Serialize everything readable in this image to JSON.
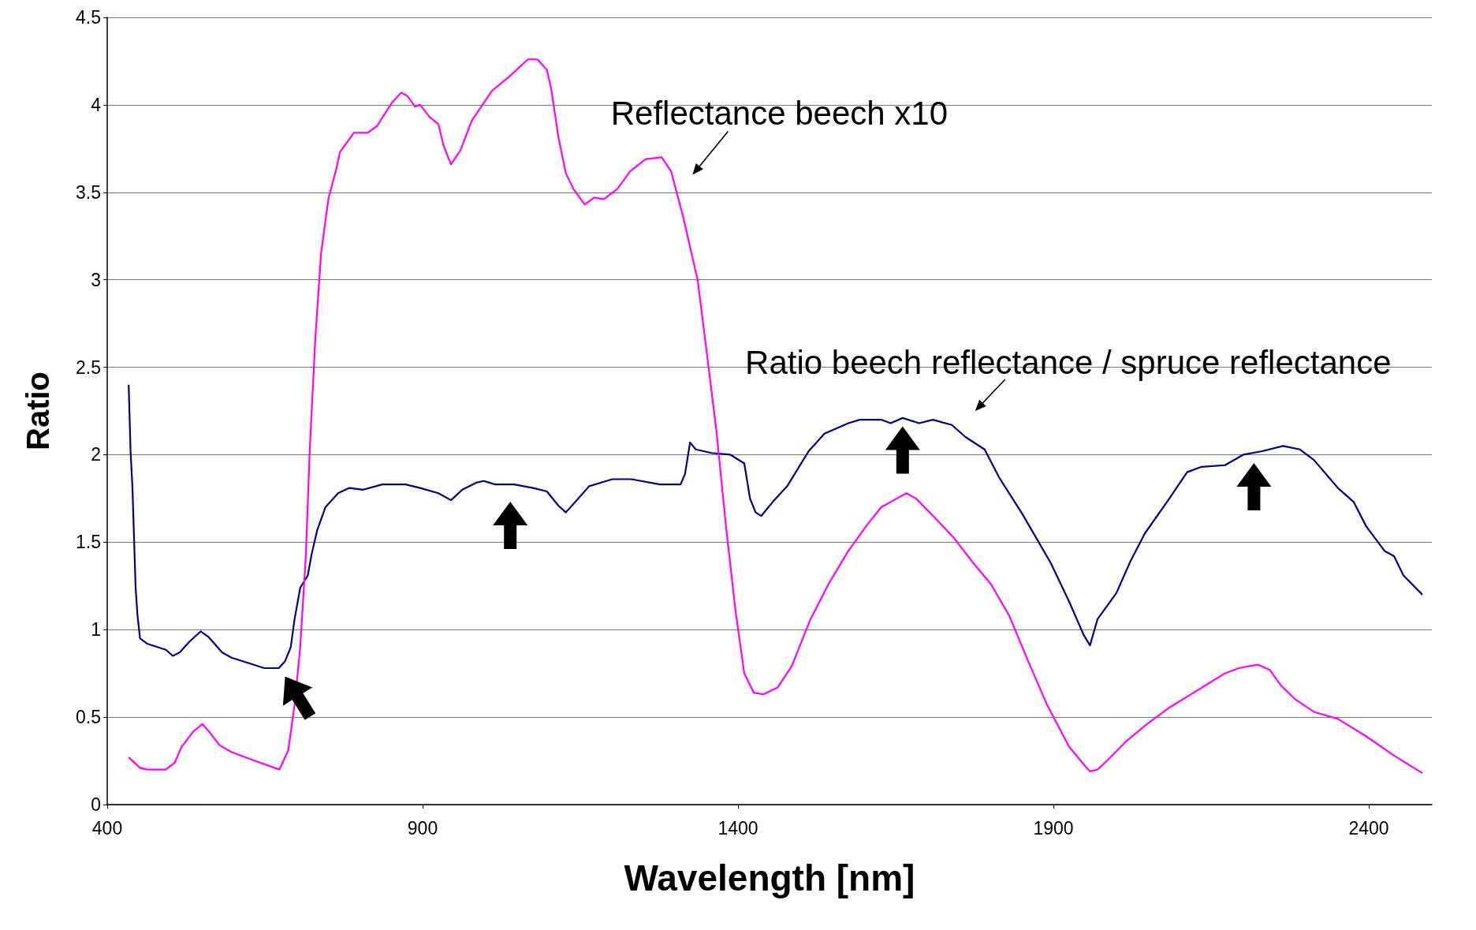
{
  "chart_data": {
    "type": "line",
    "xlabel": "Wavelength [nm]",
    "ylabel": "Ratio",
    "xlim": [
      400,
      2500
    ],
    "xticks": [
      400,
      900,
      1400,
      1900,
      2400
    ],
    "ylim": [
      0,
      4.5
    ],
    "yticks": [
      0,
      0.5,
      1,
      1.5,
      2,
      2.5,
      3,
      3.5,
      4,
      4.5
    ],
    "grid": "y",
    "annotations": [
      "Reflectance beech x10",
      "Ratio beech reflectance / spruce reflectance"
    ],
    "series": [
      {
        "color": "#000080",
        "x": [
          434,
          437,
          440,
          445,
          448,
          452,
          463,
          493,
          504,
          515,
          530,
          548,
          560,
          582,
          597,
          649,
          672,
          682,
          691,
          697,
          706,
          718,
          724,
          733,
          746,
          766,
          784,
          806,
          836,
          873,
          896,
          925,
          945,
          963,
          985,
          997,
          1015,
          1045,
          1075,
          1097,
          1115,
          1127,
          1142,
          1164,
          1201,
          1231,
          1276,
          1309,
          1316,
          1324,
          1333,
          1358,
          1388,
          1410,
          1419,
          1428,
          1437,
          1455,
          1478,
          1512,
          1537,
          1575,
          1593,
          1627,
          1642,
          1661,
          1687,
          1709,
          1739,
          1761,
          1791,
          1814,
          1851,
          1896,
          1925,
          1948,
          1958,
          1970,
          2000,
          2022,
          2045,
          2082,
          2112,
          2134,
          2172,
          2201,
          2231,
          2264,
          2291,
          2313,
          2351,
          2376,
          2396,
          2425,
          2440,
          2455,
          2485
        ],
        "values": [
          2.4,
          2.02,
          1.81,
          1.24,
          1.08,
          0.95,
          0.92,
          0.885,
          0.85,
          0.87,
          0.93,
          0.99,
          0.96,
          0.87,
          0.84,
          0.78,
          0.78,
          0.82,
          0.9,
          1.06,
          1.24,
          1.31,
          1.43,
          1.57,
          1.7,
          1.78,
          1.81,
          1.8,
          1.83,
          1.83,
          1.81,
          1.78,
          1.74,
          1.8,
          1.84,
          1.85,
          1.83,
          1.83,
          1.81,
          1.79,
          1.71,
          1.67,
          1.73,
          1.82,
          1.86,
          1.86,
          1.83,
          1.83,
          1.89,
          2.07,
          2.03,
          2.01,
          2.0,
          1.95,
          1.75,
          1.67,
          1.65,
          1.73,
          1.82,
          2.02,
          2.12,
          2.18,
          2.2,
          2.2,
          2.18,
          2.21,
          2.18,
          2.2,
          2.17,
          2.1,
          2.03,
          1.87,
          1.66,
          1.38,
          1.16,
          0.97,
          0.91,
          1.06,
          1.21,
          1.39,
          1.55,
          1.74,
          1.9,
          1.93,
          1.94,
          2.0,
          2.02,
          2.05,
          2.03,
          1.97,
          1.81,
          1.73,
          1.59,
          1.45,
          1.42,
          1.31,
          1.2
        ]
      },
      {
        "color": "#ff00ff",
        "x": [
          434,
          452,
          463,
          493,
          507,
          518,
          537,
          551,
          563,
          578,
          597,
          634,
          673,
          687,
          697,
          706,
          715,
          721,
          730,
          739,
          751,
          763,
          769,
          791,
          813,
          828,
          851,
          866,
          876,
          888,
          896,
          911,
          925,
          933,
          945,
          960,
          978,
          993,
          1010,
          1037,
          1067,
          1082,
          1097,
          1104,
          1115,
          1127,
          1139,
          1157,
          1172,
          1187,
          1209,
          1229,
          1254,
          1279,
          1294,
          1313,
          1336,
          1351,
          1366,
          1381,
          1396,
          1410,
          1425,
          1440,
          1463,
          1485,
          1515,
          1545,
          1575,
          1605,
          1627,
          1652,
          1667,
          1682,
          1712,
          1741,
          1771,
          1801,
          1830,
          1860,
          1890,
          1925,
          1948,
          1958,
          1970,
          1985,
          2015,
          2045,
          2082,
          2127,
          2172,
          2194,
          2224,
          2243,
          2261,
          2284,
          2313,
          2351,
          2396,
          2440,
          2485
        ],
        "values": [
          0.27,
          0.21,
          0.2,
          0.2,
          0.24,
          0.33,
          0.42,
          0.46,
          0.41,
          0.34,
          0.3,
          0.25,
          0.2,
          0.31,
          0.57,
          0.9,
          1.43,
          2.02,
          2.67,
          3.15,
          3.47,
          3.63,
          3.73,
          3.84,
          3.84,
          3.88,
          4.01,
          4.07,
          4.05,
          3.99,
          4.0,
          3.93,
          3.89,
          3.77,
          3.66,
          3.74,
          3.91,
          3.99,
          4.08,
          4.16,
          4.26,
          4.26,
          4.2,
          4.09,
          3.82,
          3.61,
          3.52,
          3.43,
          3.47,
          3.46,
          3.52,
          3.62,
          3.69,
          3.7,
          3.62,
          3.36,
          3.0,
          2.57,
          2.13,
          1.59,
          1.11,
          0.75,
          0.64,
          0.63,
          0.67,
          0.79,
          1.06,
          1.27,
          1.45,
          1.6,
          1.7,
          1.75,
          1.78,
          1.75,
          1.64,
          1.53,
          1.39,
          1.26,
          1.08,
          0.82,
          0.57,
          0.33,
          0.23,
          0.19,
          0.2,
          0.25,
          0.36,
          0.45,
          0.55,
          0.65,
          0.75,
          0.78,
          0.8,
          0.77,
          0.68,
          0.6,
          0.53,
          0.49,
          0.39,
          0.28,
          0.18
        ]
      }
    ]
  }
}
